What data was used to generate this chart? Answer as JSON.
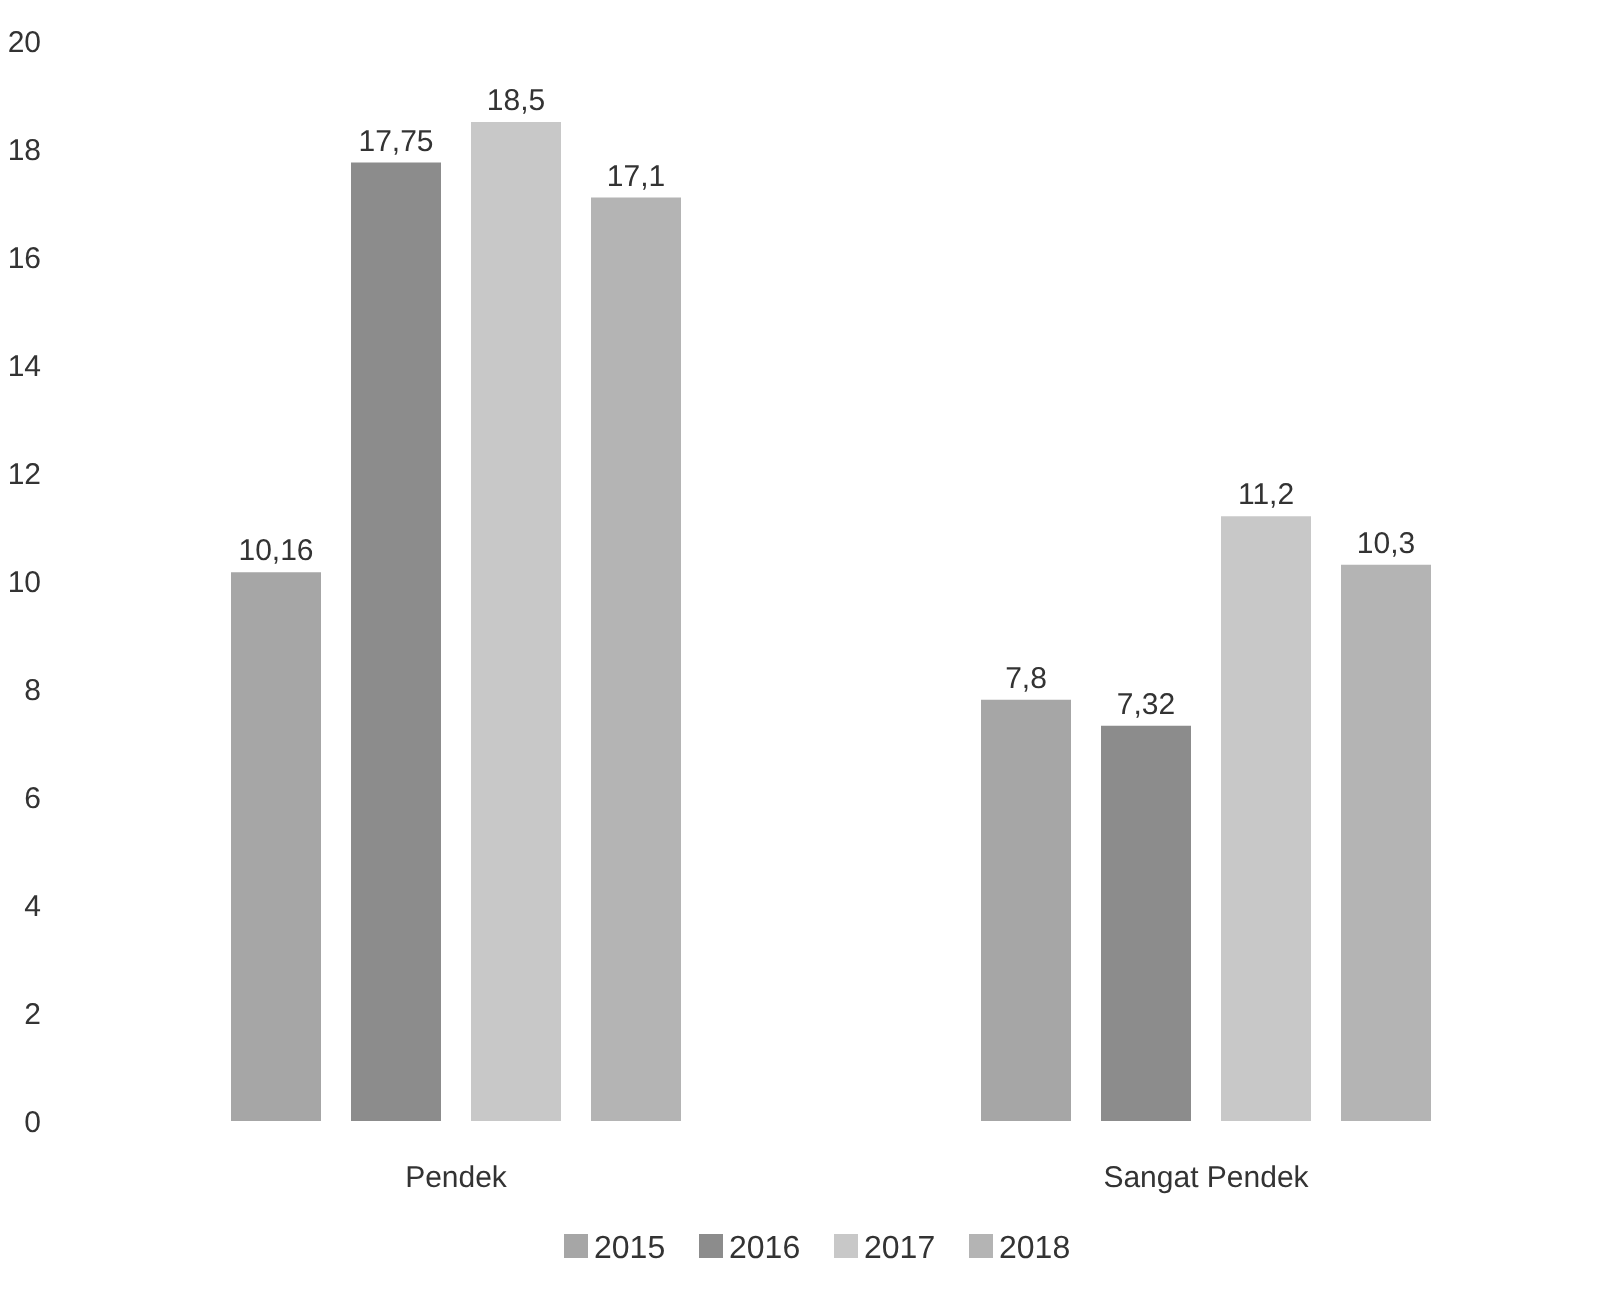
{
  "chart_data": {
    "type": "bar",
    "categories": [
      "Pendek",
      "Sangat Pendek"
    ],
    "series": [
      {
        "name": "2015",
        "color": "#a6a6a6",
        "values": [
          10.16,
          7.8
        ],
        "value_labels": [
          "10,16",
          "7,8"
        ]
      },
      {
        "name": "2016",
        "color": "#8c8c8c",
        "values": [
          17.75,
          7.32
        ],
        "value_labels": [
          "17,75",
          "7,32"
        ]
      },
      {
        "name": "2017",
        "color": "#c8c8c8",
        "values": [
          18.5,
          11.2
        ],
        "value_labels": [
          "18,5",
          "11,2"
        ]
      },
      {
        "name": "2018",
        "color": "#b4b4b4",
        "values": [
          17.1,
          10.3
        ],
        "value_labels": [
          "17,1",
          "10,3"
        ]
      }
    ],
    "ylim": [
      0,
      20
    ],
    "yticks": [
      0,
      2,
      4,
      6,
      8,
      10,
      12,
      14,
      16,
      18,
      20
    ],
    "grid": false,
    "legend": "bottom"
  }
}
